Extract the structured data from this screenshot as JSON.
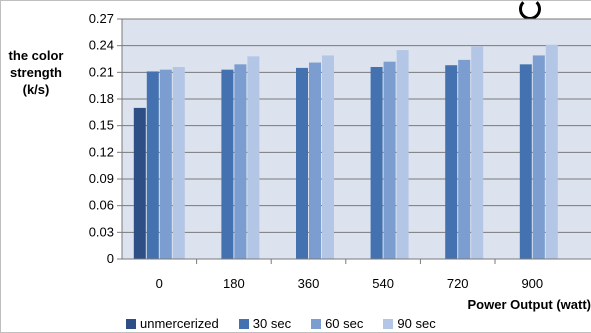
{
  "chart_data": {
    "type": "bar",
    "title": "",
    "xlabel": "Power Output (watt)",
    "ylabel_lines": [
      "the color",
      "strength",
      "(k/s)"
    ],
    "categories": [
      "0",
      "180",
      "360",
      "540",
      "720",
      "900"
    ],
    "ylim": [
      0,
      0.27
    ],
    "yticks": [
      "0",
      "0.03",
      "0.06",
      "0.09",
      "0.12",
      "0.15",
      "0.18",
      "0.21",
      "0.24",
      "0.27"
    ],
    "grid": true,
    "legend_position": "bottom",
    "series": [
      {
        "name": "unmercerized",
        "color": "#2e4f85",
        "values": [
          0.17,
          null,
          null,
          null,
          null,
          null
        ]
      },
      {
        "name": "30 sec",
        "color": "#4472b0",
        "values": [
          0.211,
          0.213,
          0.215,
          0.216,
          0.218,
          0.219
        ]
      },
      {
        "name": "60 sec",
        "color": "#7b9dcf",
        "values": [
          0.213,
          0.219,
          0.221,
          0.222,
          0.224,
          0.229
        ]
      },
      {
        "name": "90 sec",
        "color": "#b4c6e6",
        "values": [
          0.216,
          0.228,
          0.229,
          0.235,
          0.239,
          0.241
        ]
      }
    ]
  }
}
